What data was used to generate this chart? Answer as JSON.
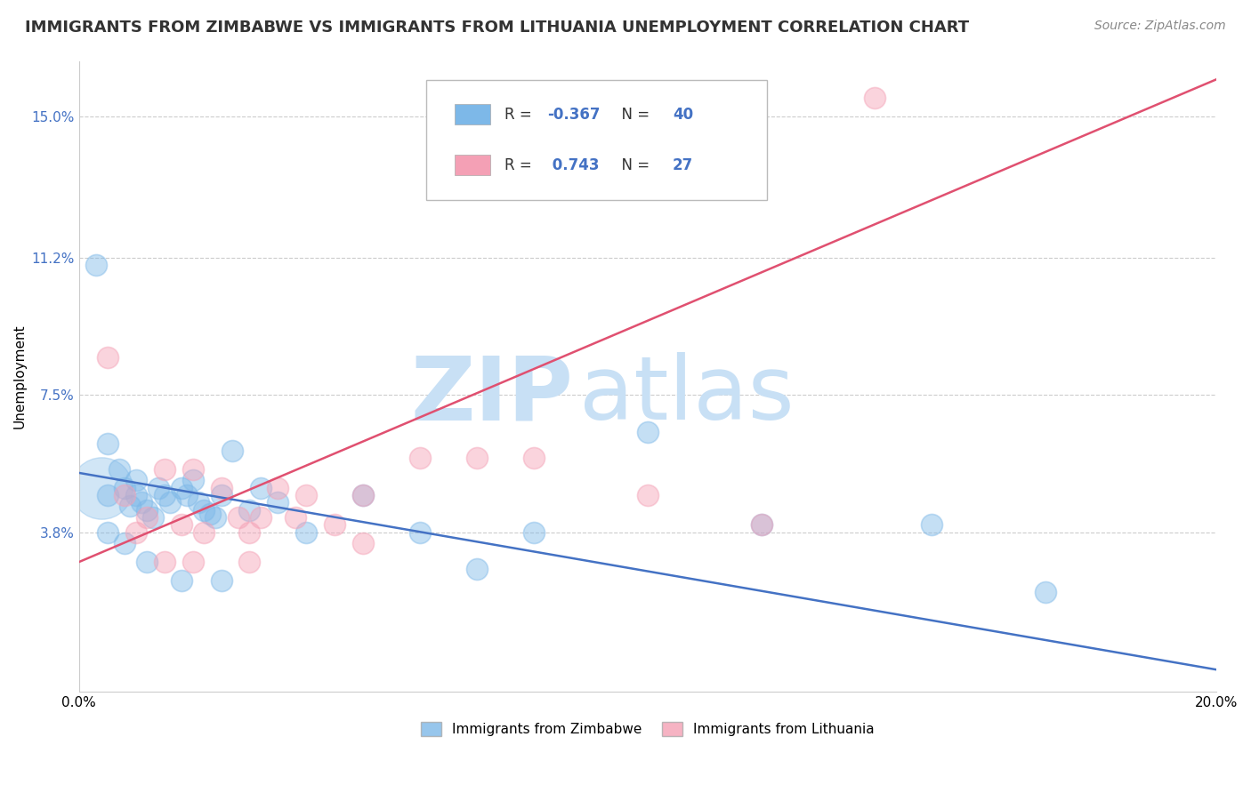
{
  "title": "IMMIGRANTS FROM ZIMBABWE VS IMMIGRANTS FROM LITHUANIA UNEMPLOYMENT CORRELATION CHART",
  "source": "Source: ZipAtlas.com",
  "ylabel": "Unemployment",
  "xlim": [
    0.0,
    0.2
  ],
  "ylim": [
    -0.005,
    0.165
  ],
  "yticks": [
    0.038,
    0.075,
    0.112,
    0.15
  ],
  "ytick_labels": [
    "3.8%",
    "7.5%",
    "11.2%",
    "15.0%"
  ],
  "xtick_labels": [
    "0.0%",
    "20.0%"
  ],
  "xtick_positions": [
    0.0,
    0.2
  ],
  "blue_color": "#7db8e8",
  "pink_color": "#f4a0b5",
  "trend_blue": "#4472c4",
  "trend_pink": "#e05070",
  "R_blue": -0.367,
  "N_blue": 40,
  "R_pink": 0.743,
  "N_pink": 27,
  "blue_trend_y0": 0.054,
  "blue_trend_y1": 0.001,
  "pink_trend_y0": 0.03,
  "pink_trend_y1": 0.16,
  "blue_scatter_x": [
    0.003,
    0.005,
    0.005,
    0.007,
    0.008,
    0.009,
    0.01,
    0.01,
    0.011,
    0.012,
    0.013,
    0.014,
    0.015,
    0.016,
    0.018,
    0.019,
    0.02,
    0.021,
    0.022,
    0.023,
    0.024,
    0.025,
    0.027,
    0.03,
    0.032,
    0.035,
    0.04,
    0.05,
    0.06,
    0.07,
    0.08,
    0.1,
    0.12,
    0.15,
    0.17,
    0.005,
    0.008,
    0.012,
    0.018,
    0.025
  ],
  "blue_scatter_y": [
    0.11,
    0.062,
    0.048,
    0.055,
    0.05,
    0.045,
    0.052,
    0.048,
    0.046,
    0.044,
    0.042,
    0.05,
    0.048,
    0.046,
    0.05,
    0.048,
    0.052,
    0.046,
    0.044,
    0.043,
    0.042,
    0.048,
    0.06,
    0.044,
    0.05,
    0.046,
    0.038,
    0.048,
    0.038,
    0.028,
    0.038,
    0.065,
    0.04,
    0.04,
    0.022,
    0.038,
    0.035,
    0.03,
    0.025,
    0.025
  ],
  "pink_scatter_x": [
    0.005,
    0.008,
    0.01,
    0.012,
    0.015,
    0.018,
    0.02,
    0.022,
    0.025,
    0.028,
    0.03,
    0.032,
    0.035,
    0.038,
    0.04,
    0.045,
    0.05,
    0.06,
    0.07,
    0.08,
    0.1,
    0.12,
    0.015,
    0.02,
    0.03,
    0.05,
    0.14
  ],
  "pink_scatter_y": [
    0.085,
    0.048,
    0.038,
    0.042,
    0.055,
    0.04,
    0.055,
    0.038,
    0.05,
    0.042,
    0.038,
    0.042,
    0.05,
    0.042,
    0.048,
    0.04,
    0.035,
    0.058,
    0.058,
    0.058,
    0.048,
    0.04,
    0.03,
    0.03,
    0.03,
    0.048,
    0.155
  ],
  "watermark_zip": "ZIP",
  "watermark_atlas": "atlas",
  "watermark_color": "#c8e0f5",
  "background_color": "#ffffff",
  "grid_color": "#cccccc",
  "tick_color": "#4472c4",
  "title_fontsize": 13,
  "axis_label_fontsize": 11,
  "tick_fontsize": 11,
  "legend_R_color": "#4472c4",
  "legend_N_color": "#4472c4"
}
